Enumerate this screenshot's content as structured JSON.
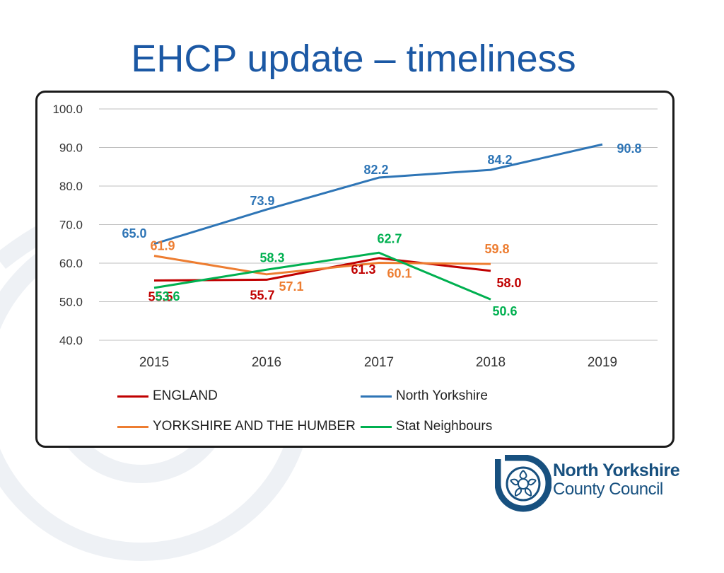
{
  "slide": {
    "title": "EHCP update – timeliness"
  },
  "chart_data": {
    "type": "line",
    "categories": [
      "2015",
      "2016",
      "2017",
      "2018",
      "2019"
    ],
    "ylim": [
      40,
      100
    ],
    "yticks": [
      "40.0",
      "50.0",
      "60.0",
      "70.0",
      "80.0",
      "90.0",
      "100.0"
    ],
    "grid": true,
    "legend_position": "bottom",
    "series": [
      {
        "name": "ENGLAND",
        "color": "#c00000",
        "values": [
          55.5,
          55.7,
          61.3,
          58.0,
          null
        ],
        "labels": [
          "55.5",
          "55.7",
          "61.3",
          "58.0",
          ""
        ]
      },
      {
        "name": "North Yorkshire",
        "color": "#2e75b6",
        "values": [
          65.0,
          73.9,
          82.2,
          84.2,
          90.8
        ],
        "labels": [
          "65.0",
          "73.9",
          "82.2",
          "84.2",
          "90.8"
        ]
      },
      {
        "name": "YORKSHIRE AND THE HUMBER",
        "color": "#ed7d31",
        "values": [
          61.9,
          57.1,
          60.1,
          59.8,
          null
        ],
        "labels": [
          "61.9",
          "57.1",
          "60.1",
          "59.8",
          ""
        ]
      },
      {
        "name": "Stat Neighbours",
        "color": "#00b050",
        "values": [
          53.6,
          58.3,
          62.7,
          50.6,
          null
        ],
        "labels": [
          "53.6",
          "58.3",
          "62.7",
          "50.6",
          ""
        ]
      }
    ]
  },
  "logo": {
    "line1": "North Yorkshire",
    "line2": "County Council"
  }
}
